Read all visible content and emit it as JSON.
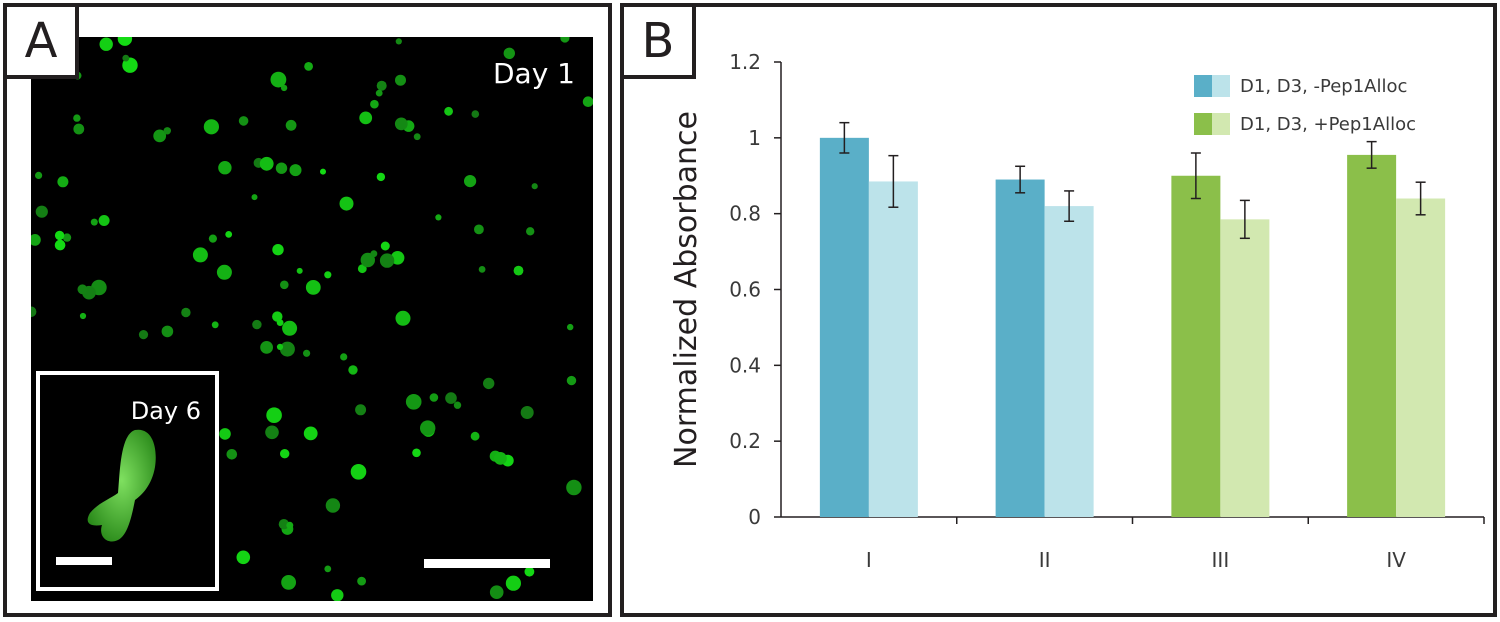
{
  "panel_a": {
    "label": "A",
    "day_label": "Day 1",
    "inset_label": "Day 6"
  },
  "panel_b": {
    "label": "B"
  },
  "colors": {
    "blue_dark": "#5aafc8",
    "blue_light": "#bce3ea",
    "green_dark": "#8bbf4a",
    "green_light": "#d2e8b0"
  },
  "chart_data": {
    "type": "bar",
    "title": "",
    "xlabel": "",
    "ylabel": "Normalized Absorbance",
    "categories": [
      "I",
      "II",
      "III",
      "IV"
    ],
    "ylim": [
      0,
      1.2
    ],
    "yticks": [
      "0",
      "0.2",
      "0.4",
      "0.6",
      "0.8",
      "1",
      "1.2"
    ],
    "series": [
      {
        "name": "D1",
        "values": [
          1.0,
          0.89,
          0.9,
          0.955
        ],
        "errors": [
          0.04,
          0.035,
          0.06,
          0.035
        ],
        "colors": [
          "#5aafc8",
          "#5aafc8",
          "#8bbf4a",
          "#8bbf4a"
        ]
      },
      {
        "name": "D3",
        "values": [
          0.885,
          0.82,
          0.785,
          0.84
        ],
        "errors": [
          0.068,
          0.04,
          0.05,
          0.043
        ],
        "colors": [
          "#bce3ea",
          "#bce3ea",
          "#d2e8b0",
          "#d2e8b0"
        ]
      }
    ],
    "legend": [
      {
        "label": "D1, D3, -Pep1Alloc",
        "colors": [
          "#5aafc8",
          "#bce3ea"
        ]
      },
      {
        "label": "D1, D3, +Pep1Alloc",
        "colors": [
          "#8bbf4a",
          "#d2e8b0"
        ]
      }
    ],
    "legend_position": "top-right"
  }
}
